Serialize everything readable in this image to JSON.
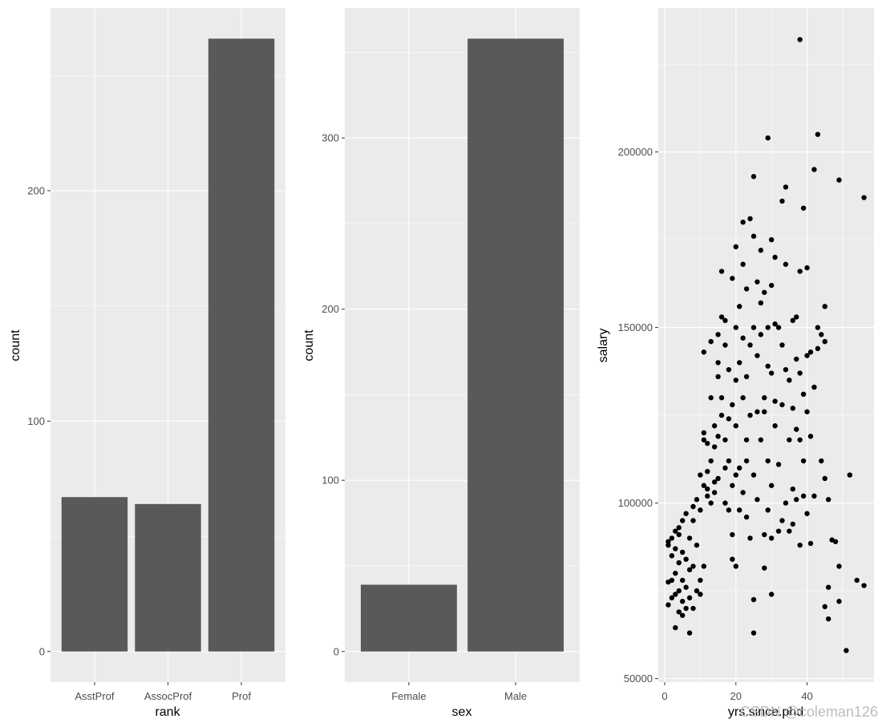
{
  "colors": {
    "panel_bg": "#EBEBEB",
    "grid": "#FFFFFF",
    "bar": "#595959",
    "point": "#000000",
    "tick_text": "#4D4D4D",
    "tick_mark": "#333333"
  },
  "watermark": "CSDN @coleman126",
  "chart_data": [
    {
      "type": "bar",
      "title": "",
      "xlabel": "rank",
      "ylabel": "count",
      "categories": [
        "AsstProf",
        "AssocProf",
        "Prof"
      ],
      "values": [
        67,
        64,
        266
      ],
      "ylim": [
        -13.3,
        279.3
      ],
      "yticks": [
        0,
        100,
        200
      ],
      "grid": true
    },
    {
      "type": "bar",
      "title": "",
      "xlabel": "sex",
      "ylabel": "count",
      "categories": [
        "Female",
        "Male"
      ],
      "values": [
        39,
        358
      ],
      "ylim": [
        -17.9,
        375.9
      ],
      "yticks": [
        0,
        100,
        200,
        300
      ],
      "grid": true
    },
    {
      "type": "scatter",
      "title": "",
      "xlabel": "yrs.since.phd",
      "ylabel": "salary",
      "xlim": [
        -1.8,
        58.8
      ],
      "ylim": [
        49000,
        241000
      ],
      "xticks": [
        0,
        20,
        40
      ],
      "yticks": [
        50000,
        100000,
        150000,
        200000
      ],
      "grid": true,
      "points": [
        [
          1,
          88000
        ],
        [
          1,
          77500
        ],
        [
          1,
          71000
        ],
        [
          1,
          89000
        ],
        [
          2,
          85000
        ],
        [
          2,
          78000
        ],
        [
          2,
          73000
        ],
        [
          2,
          90000
        ],
        [
          3,
          92000
        ],
        [
          3,
          64500
        ],
        [
          3,
          74000
        ],
        [
          3,
          87000
        ],
        [
          3,
          80000
        ],
        [
          4,
          91000
        ],
        [
          4,
          69000
        ],
        [
          4,
          75000
        ],
        [
          4,
          83000
        ],
        [
          4,
          93000
        ],
        [
          5,
          68000
        ],
        [
          5,
          72000
        ],
        [
          5,
          78000
        ],
        [
          5,
          86000
        ],
        [
          5,
          95000
        ],
        [
          6,
          70000
        ],
        [
          6,
          84000
        ],
        [
          6,
          97000
        ],
        [
          6,
          76000
        ],
        [
          7,
          63000
        ],
        [
          7,
          73000
        ],
        [
          7,
          81000
        ],
        [
          7,
          90000
        ],
        [
          8,
          70000
        ],
        [
          8,
          82000
        ],
        [
          8,
          95000
        ],
        [
          8,
          99000
        ],
        [
          9,
          101000
        ],
        [
          9,
          88000
        ],
        [
          9,
          75000
        ],
        [
          10,
          98000
        ],
        [
          10,
          108000
        ],
        [
          10,
          78000
        ],
        [
          10,
          74000
        ],
        [
          11,
          105000
        ],
        [
          11,
          118000
        ],
        [
          11,
          82000
        ],
        [
          11,
          120000
        ],
        [
          11,
          143000
        ],
        [
          12,
          104000
        ],
        [
          12,
          109000
        ],
        [
          12,
          117000
        ],
        [
          12,
          102000
        ],
        [
          13,
          130000
        ],
        [
          13,
          146000
        ],
        [
          13,
          112000
        ],
        [
          13,
          100000
        ],
        [
          14,
          122000
        ],
        [
          14,
          106000
        ],
        [
          14,
          103000
        ],
        [
          14,
          116000
        ],
        [
          15,
          107000
        ],
        [
          15,
          136000
        ],
        [
          15,
          140000
        ],
        [
          15,
          148000
        ],
        [
          15,
          119000
        ],
        [
          16,
          153000
        ],
        [
          16,
          166000
        ],
        [
          16,
          125000
        ],
        [
          16,
          130000
        ],
        [
          17,
          110000
        ],
        [
          17,
          145000
        ],
        [
          17,
          152000
        ],
        [
          17,
          118000
        ],
        [
          17,
          100000
        ],
        [
          18,
          124000
        ],
        [
          18,
          138000
        ],
        [
          18,
          112000
        ],
        [
          18,
          98000
        ],
        [
          19,
          84000
        ],
        [
          19,
          91000
        ],
        [
          19,
          105000
        ],
        [
          19,
          128000
        ],
        [
          19,
          164000
        ],
        [
          20,
          150000
        ],
        [
          20,
          135000
        ],
        [
          20,
          122000
        ],
        [
          20,
          173000
        ],
        [
          20,
          82000
        ],
        [
          20,
          108000
        ],
        [
          21,
          110000
        ],
        [
          21,
          140000
        ],
        [
          21,
          98000
        ],
        [
          21,
          156000
        ],
        [
          22,
          103000
        ],
        [
          22,
          130000
        ],
        [
          22,
          147000
        ],
        [
          22,
          180000
        ],
        [
          22,
          168000
        ],
        [
          23,
          118000
        ],
        [
          23,
          136000
        ],
        [
          23,
          112000
        ],
        [
          23,
          96000
        ],
        [
          23,
          161000
        ],
        [
          24,
          181000
        ],
        [
          24,
          125000
        ],
        [
          24,
          145000
        ],
        [
          24,
          90000
        ],
        [
          25,
          193000
        ],
        [
          25,
          176000
        ],
        [
          25,
          150000
        ],
        [
          25,
          108000
        ],
        [
          25,
          72500
        ],
        [
          25,
          63000
        ],
        [
          26,
          126000
        ],
        [
          26,
          142000
        ],
        [
          26,
          163000
        ],
        [
          26,
          101000
        ],
        [
          27,
          148000
        ],
        [
          27,
          172000
        ],
        [
          27,
          118000
        ],
        [
          27,
          157000
        ],
        [
          28,
          126000
        ],
        [
          28,
          160000
        ],
        [
          28,
          130000
        ],
        [
          28,
          91000
        ],
        [
          28,
          81500
        ],
        [
          29,
          204000
        ],
        [
          29,
          150000
        ],
        [
          29,
          139000
        ],
        [
          29,
          112000
        ],
        [
          29,
          98000
        ],
        [
          30,
          175000
        ],
        [
          30,
          162000
        ],
        [
          30,
          137000
        ],
        [
          30,
          105000
        ],
        [
          30,
          74000
        ],
        [
          30,
          90000
        ],
        [
          31,
          151000
        ],
        [
          31,
          129000
        ],
        [
          31,
          122000
        ],
        [
          31,
          170000
        ],
        [
          32,
          150000
        ],
        [
          32,
          111000
        ],
        [
          32,
          92000
        ],
        [
          33,
          186000
        ],
        [
          33,
          145000
        ],
        [
          33,
          128000
        ],
        [
          33,
          95000
        ],
        [
          34,
          190000
        ],
        [
          34,
          168000
        ],
        [
          34,
          138000
        ],
        [
          34,
          100000
        ],
        [
          35,
          135000
        ],
        [
          35,
          118000
        ],
        [
          35,
          92000
        ],
        [
          36,
          152000
        ],
        [
          36,
          127000
        ],
        [
          36,
          104000
        ],
        [
          36,
          94000
        ],
        [
          37,
          153000
        ],
        [
          37,
          141000
        ],
        [
          37,
          121000
        ],
        [
          37,
          101000
        ],
        [
          38,
          232000
        ],
        [
          38,
          166000
        ],
        [
          38,
          137000
        ],
        [
          38,
          118000
        ],
        [
          38,
          88000
        ],
        [
          39,
          184000
        ],
        [
          39,
          131000
        ],
        [
          39,
          112000
        ],
        [
          39,
          102000
        ],
        [
          40,
          167000
        ],
        [
          40,
          142000
        ],
        [
          40,
          126000
        ],
        [
          40,
          97000
        ],
        [
          41,
          143000
        ],
        [
          41,
          119000
        ],
        [
          41,
          88500
        ],
        [
          42,
          195000
        ],
        [
          42,
          133000
        ],
        [
          42,
          102000
        ],
        [
          43,
          205000
        ],
        [
          43,
          150000
        ],
        [
          43,
          144000
        ],
        [
          44,
          148000
        ],
        [
          44,
          112000
        ],
        [
          45,
          156000
        ],
        [
          45,
          146000
        ],
        [
          45,
          107000
        ],
        [
          45,
          70500
        ],
        [
          46,
          101000
        ],
        [
          46,
          76000
        ],
        [
          46,
          67000
        ],
        [
          47,
          89500
        ],
        [
          48,
          89000
        ],
        [
          49,
          192000
        ],
        [
          49,
          82000
        ],
        [
          49,
          72000
        ],
        [
          51,
          58000
        ],
        [
          52,
          108000
        ],
        [
          54,
          78000
        ],
        [
          56,
          187000
        ],
        [
          56,
          76500
        ]
      ]
    }
  ]
}
